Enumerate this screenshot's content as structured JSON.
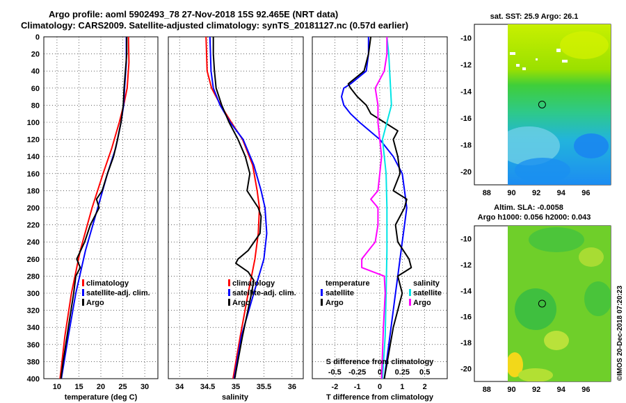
{
  "title": {
    "line1": "Argo profile: aoml 5902493_78 27-Nov-2018 15S 92.465E (NRT data)",
    "line2": "Climatology: CARS2009. Satellite-adjusted climatology: synTS_20181127.nc (0.57d earlier)"
  },
  "colors": {
    "climatology": "#ff0000",
    "satellite": "#0000ff",
    "argo": "#000000",
    "sat_salinity": "#00e5e5",
    "argo_salinity": "#ff00ff"
  },
  "chart_data": [
    {
      "type": "line",
      "name": "temperature",
      "xlabel": "temperature (deg C)",
      "ylabel": "",
      "xlim": [
        7,
        33
      ],
      "ylim": [
        400,
        0
      ],
      "xticks": [
        "10",
        "15",
        "20",
        "25",
        "30"
      ],
      "xtick_values": [
        10,
        15,
        20,
        25,
        30
      ],
      "yticks": [
        "0",
        "20",
        "40",
        "60",
        "80",
        "100",
        "120",
        "140",
        "160",
        "180",
        "200",
        "220",
        "240",
        "260",
        "280",
        "300",
        "320",
        "340",
        "360",
        "380",
        "400"
      ],
      "legend": [
        "climatology",
        "satellite-adj. clim.",
        "Argo"
      ],
      "series": [
        {
          "name": "climatology",
          "depth": [
            0,
            30,
            60,
            80,
            100,
            130,
            160,
            200,
            250,
            300,
            350,
            400
          ],
          "values": [
            26.3,
            26.4,
            26.0,
            25.2,
            24.2,
            22.5,
            20.5,
            18.0,
            15.3,
            13.3,
            11.8,
            10.7
          ]
        },
        {
          "name": "satellite-adj. clim.",
          "depth": [
            0,
            30,
            60,
            80,
            100,
            130,
            160,
            200,
            250,
            300,
            350,
            400
          ],
          "values": [
            25.8,
            25.8,
            25.4,
            25.2,
            24.6,
            23.4,
            21.5,
            19.3,
            16.5,
            14.3,
            12.6,
            11.0
          ]
        },
        {
          "name": "Argo",
          "depth": [
            0,
            20,
            40,
            60,
            80,
            100,
            120,
            140,
            160,
            180,
            190,
            200,
            220,
            240,
            260,
            270,
            280,
            300,
            340,
            380,
            400
          ],
          "values": [
            25.9,
            25.9,
            25.6,
            25.3,
            25.1,
            24.6,
            23.8,
            22.9,
            21.5,
            20.3,
            19.0,
            19.6,
            17.6,
            16.3,
            14.5,
            15.3,
            14.3,
            13.8,
            12.6,
            11.4,
            10.9
          ]
        }
      ]
    },
    {
      "type": "line",
      "name": "salinity",
      "xlabel": "salinity",
      "xlim": [
        33.8,
        36.2
      ],
      "ylim": [
        400,
        0
      ],
      "xticks": [
        "34",
        "34.5",
        "35",
        "35.5",
        "36"
      ],
      "xtick_values": [
        34,
        34.5,
        35,
        35.5,
        36
      ],
      "legend": [
        "climatology",
        "satellite-adj. clim.",
        "Argo"
      ],
      "series": [
        {
          "name": "climatology",
          "depth": [
            0,
            40,
            60,
            80,
            100,
            120,
            150,
            180,
            200,
            230,
            260,
            300,
            350,
            400
          ],
          "values": [
            34.47,
            34.49,
            34.57,
            34.73,
            34.92,
            35.12,
            35.3,
            35.38,
            35.42,
            35.4,
            35.34,
            35.22,
            35.08,
            34.95
          ]
        },
        {
          "name": "satellite-adj. clim.",
          "depth": [
            0,
            40,
            60,
            80,
            100,
            120,
            150,
            180,
            200,
            230,
            260,
            300,
            350,
            400
          ],
          "values": [
            34.54,
            34.56,
            34.6,
            34.72,
            34.9,
            35.13,
            35.32,
            35.45,
            35.52,
            35.55,
            35.5,
            35.32,
            35.1,
            34.97
          ]
        },
        {
          "name": "Argo",
          "depth": [
            0,
            20,
            40,
            60,
            80,
            100,
            120,
            140,
            160,
            180,
            190,
            200,
            210,
            230,
            250,
            260,
            265,
            275,
            285,
            300,
            350,
            400
          ],
          "values": [
            34.6,
            34.6,
            34.62,
            34.65,
            34.75,
            34.88,
            35.04,
            35.17,
            35.25,
            35.2,
            35.3,
            35.4,
            35.45,
            35.43,
            35.22,
            35.04,
            35.0,
            35.22,
            35.32,
            35.28,
            35.12,
            34.98
          ]
        }
      ]
    },
    {
      "type": "line",
      "name": "differences",
      "xlabel": "T difference from climatology",
      "xlabel_top": "S difference from climatology",
      "xlim": [
        -3,
        3
      ],
      "xlim_top": [
        -0.75,
        0.75
      ],
      "ylim": [
        400,
        0
      ],
      "xticks": [
        "-2",
        "-1",
        "0",
        "1",
        "2"
      ],
      "xtick_values": [
        -2,
        -1,
        0,
        1,
        2
      ],
      "xticks_top": [
        "-0.5",
        "-0.25",
        "0",
        "0.25",
        "0.5"
      ],
      "xtick_values_top": [
        -0.5,
        -0.25,
        0,
        0.25,
        0.5
      ],
      "legend_temperature_title": "temperature",
      "legend_salinity_title": "salinity",
      "legend_temperature": [
        "satellite",
        "Argo"
      ],
      "legend_salinity": [
        "satellite",
        "Argo"
      ],
      "series": [
        {
          "name": "T satellite",
          "depth": [
            0,
            20,
            40,
            55,
            60,
            70,
            80,
            90,
            100,
            120,
            140,
            160,
            180,
            200,
            220,
            240,
            260,
            280,
            300,
            340,
            400
          ],
          "values": [
            -0.5,
            -0.5,
            -0.6,
            -1.3,
            -1.6,
            -1.7,
            -1.6,
            -1.3,
            -0.9,
            0.0,
            0.6,
            1.0,
            1.1,
            1.2,
            1.1,
            1.0,
            0.9,
            0.8,
            0.7,
            0.5,
            0.2
          ]
        },
        {
          "name": "T Argo",
          "depth": [
            0,
            20,
            40,
            55,
            60,
            70,
            80,
            90,
            100,
            110,
            120,
            140,
            160,
            180,
            190,
            200,
            220,
            240,
            260,
            270,
            280,
            300,
            340,
            400
          ],
          "values": [
            -0.4,
            -0.5,
            -0.7,
            -1.4,
            -1.3,
            -1.0,
            -0.6,
            -0.4,
            0.2,
            0.8,
            0.6,
            0.8,
            0.9,
            0.6,
            1.2,
            1.1,
            0.7,
            0.8,
            1.3,
            1.4,
            0.8,
            1.0,
            0.6,
            0.2
          ]
        },
        {
          "name": "S satellite",
          "depth": [
            0,
            20,
            40,
            60,
            80,
            100,
            120,
            140,
            160,
            200,
            250,
            300,
            350,
            400
          ],
          "values": [
            0.08,
            0.1,
            0.11,
            0.12,
            0.13,
            0.08,
            0.03,
            0.05,
            0.07,
            0.08,
            0.08,
            0.07,
            0.06,
            0.03
          ]
        },
        {
          "name": "S Argo",
          "depth": [
            0,
            20,
            40,
            60,
            80,
            100,
            120,
            140,
            160,
            180,
            190,
            200,
            220,
            240,
            260,
            270,
            280,
            300,
            340,
            400
          ],
          "values": [
            0.08,
            0.08,
            0.05,
            -0.05,
            -0.02,
            -0.02,
            0.0,
            0.02,
            0.0,
            -0.02,
            -0.1,
            -0.02,
            -0.02,
            -0.05,
            -0.2,
            -0.2,
            0.05,
            0.06,
            0.04,
            0.02
          ]
        }
      ]
    },
    {
      "type": "heatmap",
      "name": "sst_map",
      "title": "sat. SST: 25.9 Argo: 26.1",
      "xticks": [
        "88",
        "90",
        "92",
        "94",
        "96"
      ],
      "yticks": [
        "-10",
        "-12",
        "-14",
        "-16",
        "-18",
        "-20"
      ],
      "xlim": [
        87,
        98
      ],
      "ylim": [
        -21,
        -9
      ]
    },
    {
      "type": "heatmap",
      "name": "sla_map",
      "title_line1": "Altim. SLA: -0.0058",
      "title_line2": "Argo h1000: 0.056 h2000: 0.043",
      "xticks": [
        "88",
        "90",
        "92",
        "94",
        "96"
      ],
      "yticks": [
        "-10",
        "-12",
        "-14",
        "-16",
        "-18",
        "-20"
      ],
      "xlim": [
        87,
        98
      ],
      "ylim": [
        -21,
        -9
      ]
    }
  ],
  "argo_position": {
    "lon": 92.465,
    "lat": -15
  },
  "credit": "©IMOS 20-Dec-2018 07:20:23"
}
